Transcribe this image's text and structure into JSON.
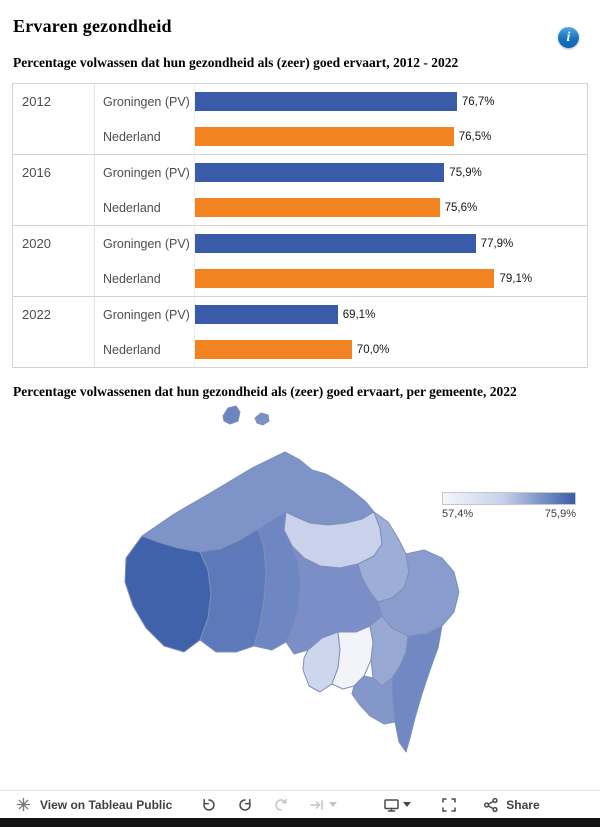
{
  "page": {
    "title": "Ervaren gezondheid"
  },
  "chart_data": [
    {
      "type": "bar",
      "orientation": "horizontal",
      "title": "Percentage volwassen dat hun gezondheid als (zeer) goed ervaart, 2012 - 2022",
      "categories": [
        "2012",
        "2016",
        "2020",
        "2022"
      ],
      "series": [
        {
          "name": "Groningen (PV)",
          "color": "#3a5ca8",
          "values": [
            76.7,
            75.9,
            77.9,
            69.1
          ],
          "labels": [
            "76,7%",
            "75,9%",
            "77,9%",
            "69,1%"
          ]
        },
        {
          "name": "Nederland",
          "color": "#f28321",
          "values": [
            76.5,
            75.6,
            79.1,
            70.0
          ],
          "labels": [
            "76,5%",
            "75,6%",
            "79,1%",
            "70,0%"
          ]
        }
      ],
      "xlim": [
        60,
        85
      ],
      "grid": false,
      "value_labels_shown": true,
      "legend_position": "row labels on left"
    },
    {
      "type": "heatmap",
      "subtype": "choropleth-map",
      "title": "Percentage volwassenen dat hun gezondheid als (zeer) goed ervaart, per gemeente, 2022",
      "legend": {
        "min": 57.4,
        "max": 75.9,
        "min_label": "57,4%",
        "max_label": "75,9%",
        "colors": [
          "#f4f6fb",
          "#3a5ca8"
        ]
      }
    }
  ],
  "map": {
    "regions": [
      {
        "id": "island-a",
        "color": "#6c85bf"
      },
      {
        "id": "island-b",
        "color": "#7b90c6"
      },
      {
        "id": "region-north",
        "color": "#7e93c8"
      },
      {
        "id": "region-northeast-light",
        "color": "#c9d2ea"
      },
      {
        "id": "region-east-mid",
        "color": "#9cadd7"
      },
      {
        "id": "region-east",
        "color": "#8a9ccd"
      },
      {
        "id": "region-west-dark",
        "color": "#4062aa"
      },
      {
        "id": "region-west",
        "color": "#5d79ba"
      },
      {
        "id": "region-center",
        "color": "#6e86c1"
      },
      {
        "id": "region-center-east",
        "color": "#7b8ec7"
      },
      {
        "id": "region-south-light",
        "color": "#ccd6ec"
      },
      {
        "id": "region-south-white",
        "color": "#f2f4fa"
      },
      {
        "id": "region-southeast-mid",
        "color": "#97a8d3"
      },
      {
        "id": "region-tail",
        "color": "#7288c3"
      },
      {
        "id": "region-south-band",
        "color": "#8497cb"
      }
    ]
  },
  "toolbar": {
    "view_label": "View on Tableau Public",
    "share_label": "Share",
    "buttons": [
      {
        "name": "undo",
        "enabled": true
      },
      {
        "name": "redo",
        "enabled": true
      },
      {
        "name": "replay",
        "enabled": false
      },
      {
        "name": "skip",
        "enabled": false
      },
      {
        "name": "device-preview",
        "enabled": true
      },
      {
        "name": "fullscreen",
        "enabled": true
      },
      {
        "name": "share",
        "enabled": true
      }
    ]
  }
}
